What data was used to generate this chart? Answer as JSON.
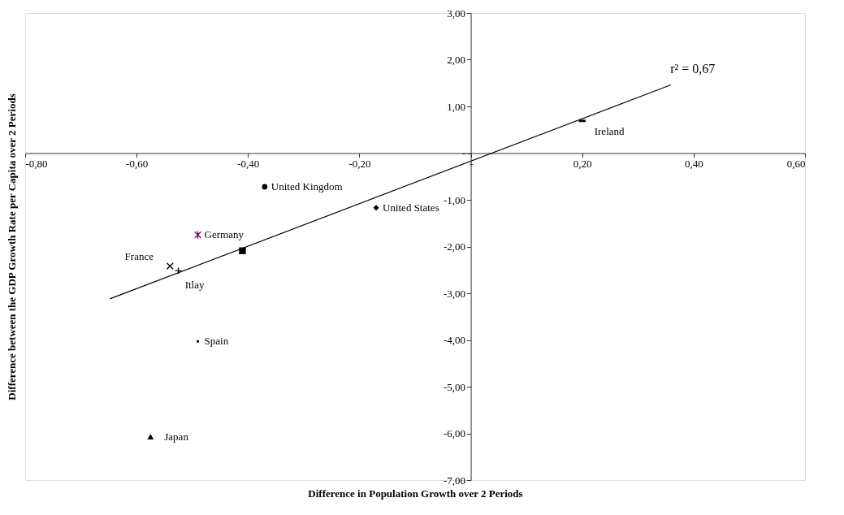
{
  "chart_data": {
    "type": "scatter",
    "xlabel": "Difference in Population Growth over 2 Periods",
    "ylabel": "Difference between the GDP Growth Rate per Capita over 2 Periods",
    "xlim": [
      -0.8,
      0.6
    ],
    "ylim": [
      -7,
      3
    ],
    "xticks": [
      {
        "value": -0.8,
        "label": "-0,80"
      },
      {
        "value": -0.6,
        "label": "-0,60"
      },
      {
        "value": -0.4,
        "label": "-0,40"
      },
      {
        "value": -0.2,
        "label": "-0,20"
      },
      {
        "value": 0,
        "label": "-"
      },
      {
        "value": 0.2,
        "label": "0,20"
      },
      {
        "value": 0.4,
        "label": "0,40"
      },
      {
        "value": 0.6,
        "label": "0,60"
      }
    ],
    "yticks": [
      {
        "value": 3,
        "label": "3,00"
      },
      {
        "value": 2,
        "label": "2,00"
      },
      {
        "value": 1,
        "label": "1,00"
      },
      {
        "value": 0,
        "label": "-"
      },
      {
        "value": -1,
        "label": "-1,00"
      },
      {
        "value": -2,
        "label": "-2,00"
      },
      {
        "value": -3,
        "label": "-3,00"
      },
      {
        "value": -4,
        "label": "-4,00"
      },
      {
        "value": -5,
        "label": "-5,00"
      },
      {
        "value": -6,
        "label": "-6,00"
      },
      {
        "value": -7,
        "label": "-7,00"
      }
    ],
    "grid": false,
    "legend": false,
    "series": [
      {
        "name": "Ireland",
        "color": "#000000",
        "marker": "square",
        "x": [
          0.2
        ],
        "values": [
          0.69
        ]
      },
      {
        "name": "United Kingdom",
        "color": "#000000",
        "marker": "circle",
        "x": [
          -0.37
        ],
        "values": [
          -0.72
        ]
      },
      {
        "name": "United States",
        "color": "#000000",
        "marker": "diamond",
        "x": [
          -0.17
        ],
        "values": [
          -1.17
        ]
      },
      {
        "name": "Germany",
        "color": "#800080",
        "marker": "cross",
        "x": [
          -0.49
        ],
        "values": [
          -1.75
        ]
      },
      {
        "color": "#000000",
        "marker": "square",
        "x": [
          -0.41
        ],
        "values": [
          -2.09
        ]
      },
      {
        "name": "France",
        "color": "#000000",
        "marker": "cross",
        "x": [
          -0.54
        ],
        "values": [
          -2.42
        ]
      },
      {
        "name": "Itlay",
        "color": "#000000",
        "marker": "cross",
        "x": [
          -0.525
        ],
        "values": [
          -2.52
        ]
      },
      {
        "name": "Spain",
        "color": "#000000",
        "marker": "square",
        "x": [
          -0.49
        ],
        "values": [
          -4.03
        ]
      },
      {
        "name": "Japan",
        "color": "#000000",
        "marker": "triangle",
        "x": [
          -0.575
        ],
        "values": [
          -6.07
        ]
      },
      {
        "type": "line",
        "color": "#000000",
        "marker": "none",
        "x": [
          -0.648,
          0.359
        ],
        "values": [
          -3.12,
          1.46
        ]
      }
    ],
    "annotations": [
      {
        "text": "r² = 0,67",
        "x": 0.359,
        "y": 1.46
      }
    ]
  }
}
